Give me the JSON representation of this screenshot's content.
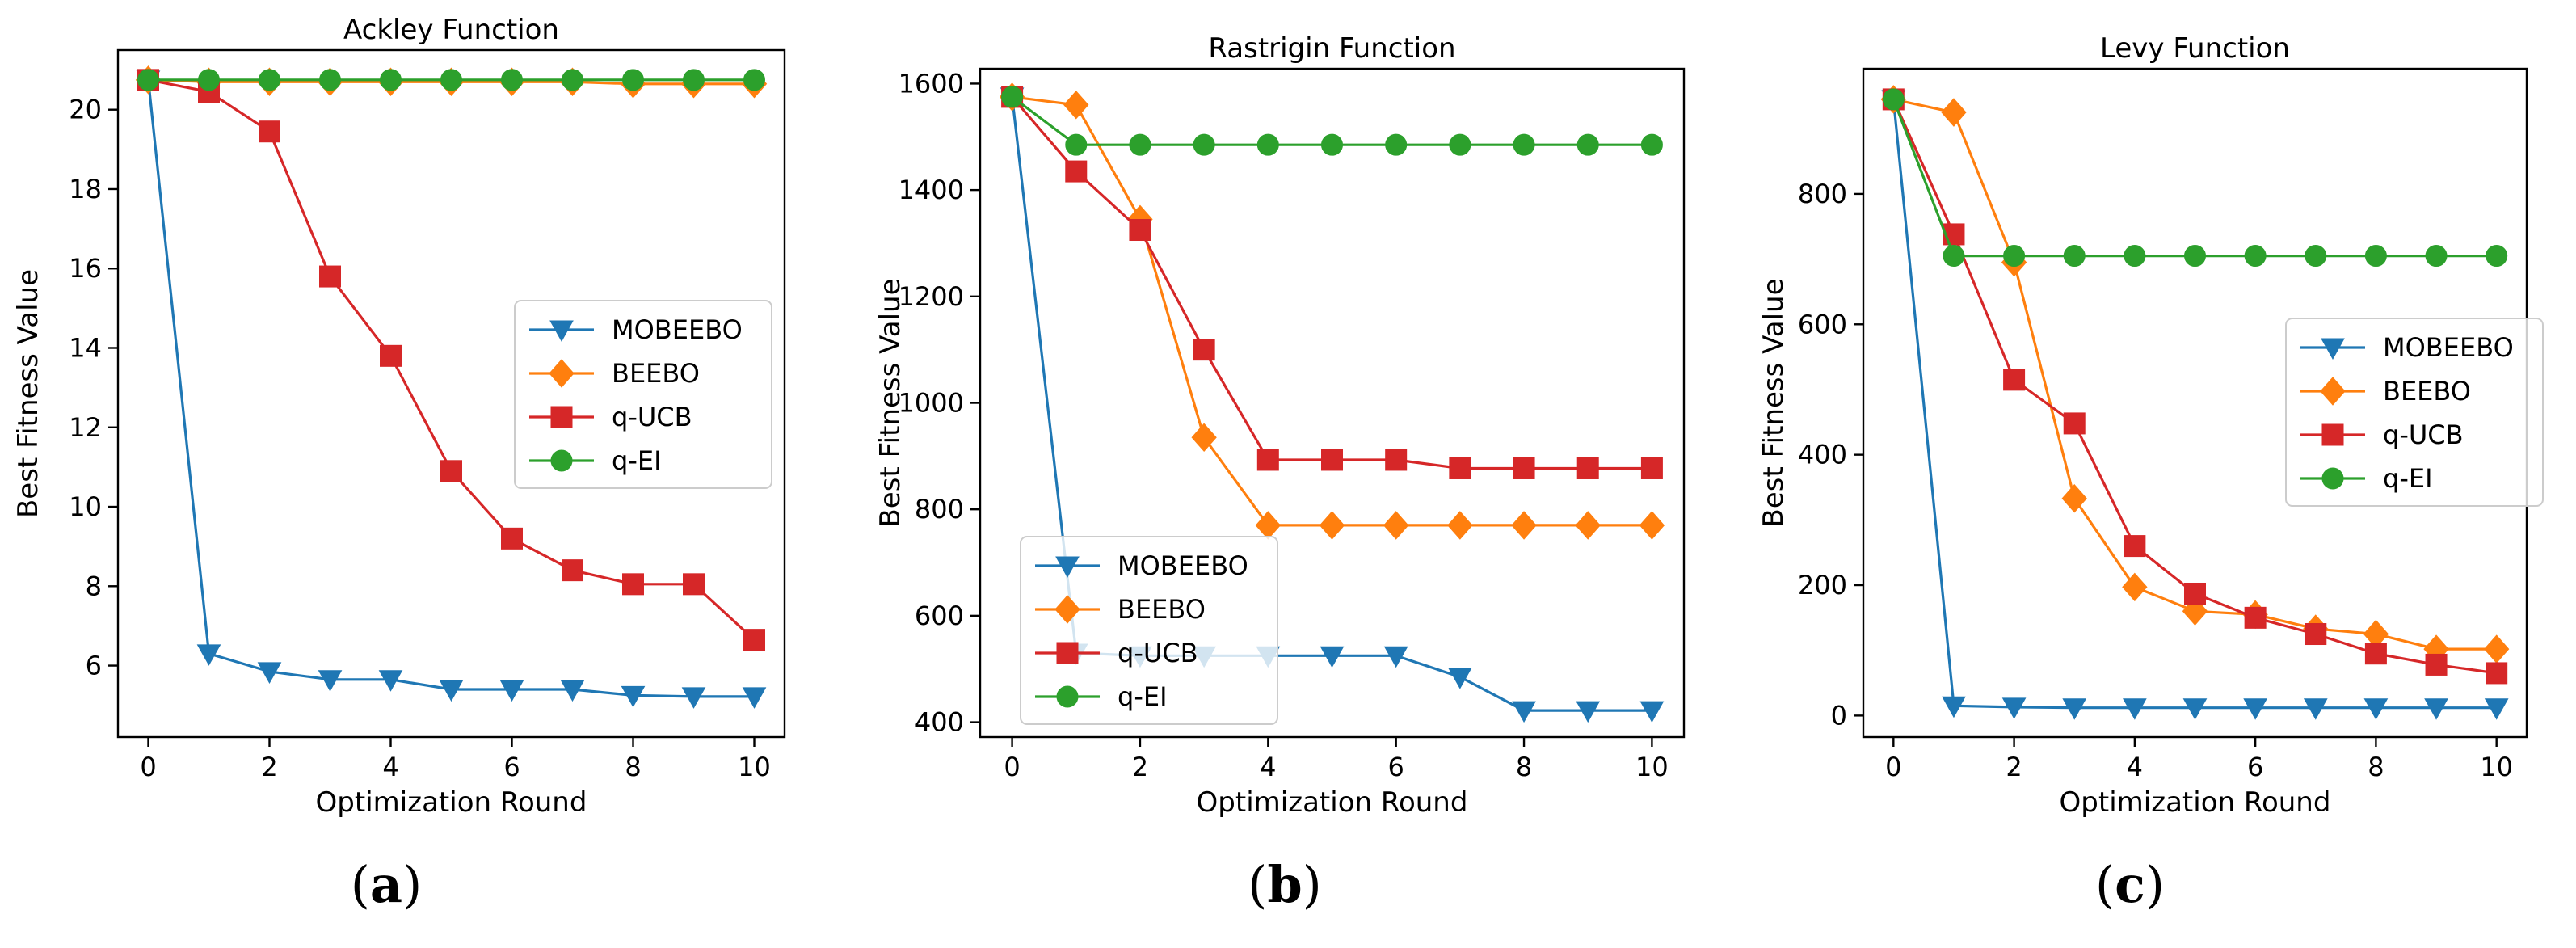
{
  "series_styles": [
    {
      "name": "MOBEEBO",
      "color": "#1f77b4",
      "marker": "triangle-down"
    },
    {
      "name": "BEEBO",
      "color": "#ff7f0e",
      "marker": "diamond"
    },
    {
      "name": "q-UCB",
      "color": "#d62728",
      "marker": "square"
    },
    {
      "name": "q-EI",
      "color": "#2ca02c",
      "marker": "circle"
    }
  ],
  "chart_data": [
    {
      "type": "line",
      "title": "Ackley Function",
      "caption": "(a)",
      "caption_letter": "a",
      "xlabel": "Optimization Round",
      "ylabel": "Best Fitness Value",
      "x": [
        0,
        1,
        2,
        3,
        4,
        5,
        6,
        7,
        8,
        9,
        10
      ],
      "xlim": [
        -0.5,
        10.5
      ],
      "ylim": [
        4.2,
        21.5
      ],
      "xticks": [
        0,
        2,
        4,
        6,
        8,
        10
      ],
      "yticks": [
        6,
        8,
        10,
        12,
        14,
        16,
        18,
        20
      ],
      "legend_position": "center-right",
      "series": [
        {
          "name": "MOBEEBO",
          "values": [
            20.75,
            6.3,
            5.85,
            5.65,
            5.65,
            5.4,
            5.4,
            5.4,
            5.25,
            5.22,
            5.22
          ]
        },
        {
          "name": "BEEBO",
          "values": [
            20.75,
            20.7,
            20.7,
            20.7,
            20.7,
            20.7,
            20.7,
            20.7,
            20.65,
            20.65,
            20.65
          ]
        },
        {
          "name": "q-UCB",
          "values": [
            20.75,
            20.45,
            19.45,
            15.8,
            13.8,
            10.9,
            9.2,
            8.4,
            8.05,
            8.05,
            6.65
          ]
        },
        {
          "name": "q-EI",
          "values": [
            20.75,
            20.75,
            20.75,
            20.75,
            20.75,
            20.75,
            20.75,
            20.75,
            20.75,
            20.75,
            20.75
          ]
        }
      ]
    },
    {
      "type": "line",
      "title": "Rastrigin Function",
      "caption": "(b)",
      "caption_letter": "b",
      "xlabel": "Optimization Round",
      "ylabel": "Best Fitness Value",
      "x": [
        0,
        1,
        2,
        3,
        4,
        5,
        6,
        7,
        8,
        9,
        10
      ],
      "xlim": [
        -0.5,
        10.5
      ],
      "ylim": [
        372,
        1628
      ],
      "xticks": [
        0,
        2,
        4,
        6,
        8,
        10
      ],
      "yticks": [
        400,
        600,
        800,
        1000,
        1200,
        1400,
        1600
      ],
      "legend_position": "lower-left",
      "series": [
        {
          "name": "MOBEEBO",
          "values": [
            1575,
            530,
            525,
            525,
            525,
            525,
            525,
            485,
            422,
            422,
            422
          ]
        },
        {
          "name": "BEEBO",
          "values": [
            1575,
            1560,
            1345,
            935,
            770,
            770,
            770,
            770,
            770,
            770,
            770
          ]
        },
        {
          "name": "q-UCB",
          "values": [
            1575,
            1435,
            1325,
            1100,
            893,
            893,
            893,
            877,
            877,
            877,
            877
          ]
        },
        {
          "name": "q-EI",
          "values": [
            1575,
            1485,
            1485,
            1485,
            1485,
            1485,
            1485,
            1485,
            1485,
            1485,
            1485
          ]
        }
      ]
    },
    {
      "type": "line",
      "title": "Levy Function",
      "caption": "(c)",
      "caption_letter": "c",
      "xlabel": "Optimization Round",
      "ylabel": "Best Fitness Value",
      "x": [
        0,
        1,
        2,
        3,
        4,
        5,
        6,
        7,
        8,
        9,
        10
      ],
      "xlim": [
        -0.5,
        10.5
      ],
      "ylim": [
        -33,
        992
      ],
      "xticks": [
        0,
        2,
        4,
        6,
        8,
        10
      ],
      "yticks": [
        0,
        200,
        400,
        600,
        800
      ],
      "legend_position": "center-right",
      "series": [
        {
          "name": "MOBEEBO",
          "values": [
            945,
            15,
            13,
            12,
            12,
            12,
            12,
            12,
            12,
            12,
            12
          ]
        },
        {
          "name": "BEEBO",
          "values": [
            945,
            925,
            695,
            333,
            197,
            160,
            155,
            133,
            125,
            102,
            102
          ]
        },
        {
          "name": "q-UCB",
          "values": [
            945,
            738,
            515,
            448,
            260,
            187,
            150,
            125,
            95,
            78,
            65
          ]
        },
        {
          "name": "q-EI",
          "values": [
            945,
            705,
            705,
            705,
            705,
            705,
            705,
            705,
            705,
            705,
            705
          ]
        }
      ]
    }
  ]
}
